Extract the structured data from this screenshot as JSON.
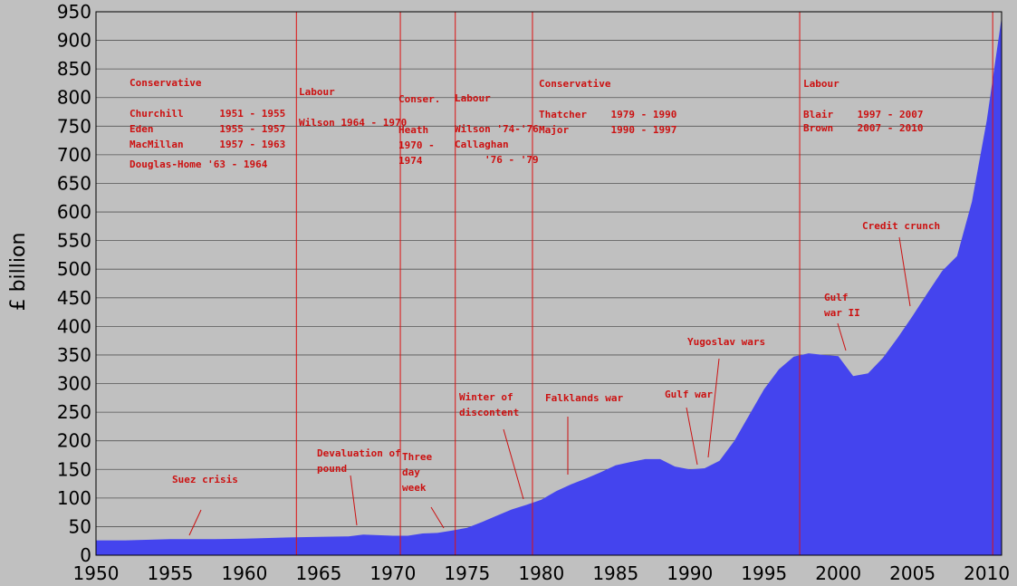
{
  "chart_data": {
    "type": "area",
    "ylabel": "£ billion",
    "xlim": [
      1950,
      2011
    ],
    "ylim": [
      0,
      950
    ],
    "grid": true,
    "area_color": "#4444ee",
    "annotation_color": "#dd1111",
    "x_ticks": [
      1950,
      1955,
      1960,
      1965,
      1970,
      1975,
      1980,
      1985,
      1990,
      1995,
      2000,
      2005,
      2010
    ],
    "y_ticks": [
      0,
      50,
      100,
      150,
      200,
      250,
      300,
      350,
      400,
      450,
      500,
      550,
      600,
      650,
      700,
      750,
      800,
      850,
      900,
      950
    ],
    "series": [
      {
        "x": [
          1950,
          1952,
          1955,
          1958,
          1960,
          1963,
          1965,
          1967,
          1968,
          1969,
          1970,
          1971,
          1972,
          1973,
          1974,
          1975,
          1976,
          1977,
          1978,
          1979,
          1980,
          1981,
          1982,
          1983,
          1984,
          1985,
          1986,
          1987,
          1988,
          1989,
          1990,
          1991,
          1992,
          1993,
          1994,
          1995,
          1996,
          1997,
          1998,
          1999,
          2000,
          2001,
          2002,
          2003,
          2004,
          2005,
          2006,
          2007,
          2008,
          2009,
          2010,
          2011
        ],
        "values": [
          26,
          26,
          28,
          28,
          29,
          31,
          32,
          33,
          36,
          35,
          34,
          34,
          38,
          39,
          43,
          48,
          58,
          69,
          80,
          88,
          97,
          112,
          124,
          134,
          145,
          157,
          163,
          168,
          168,
          155,
          150,
          152,
          165,
          200,
          245,
          290,
          325,
          347,
          353,
          350,
          348,
          313,
          318,
          345,
          380,
          418,
          458,
          497,
          523,
          618,
          760,
          940
        ]
      }
    ],
    "government_changes": [
      1963.5,
      1970.5,
      1974.2,
      1979.4,
      1997.4,
      2010.4
    ],
    "annotations": {
      "govt1": {
        "party": "Conservative",
        "lines": [
          "Churchill      1951 - 1955",
          "Eden           1955 - 1957",
          "MacMillan      1957 - 1963",
          "Douglas-Home '63 - 1964"
        ]
      },
      "govt2": {
        "party": "Labour",
        "lines": [
          "Wilson 1964 - 1970"
        ]
      },
      "govt3": {
        "party": "Conser.",
        "lines": [
          "Heath",
          "1970 -",
          "1974"
        ]
      },
      "govt4": {
        "party": "Labour",
        "lines": [
          "Wilson '74-'76",
          "Callaghan",
          "'76 - '79"
        ]
      },
      "govt5": {
        "party": "Conservative",
        "lines": [
          "Thatcher    1979 - 1990",
          "Major       1990 - 1997"
        ]
      },
      "govt6": {
        "party": "Labour",
        "lines": [
          "Blair    1997 - 2007",
          "Brown    2007 - 2010"
        ]
      },
      "events": [
        "Suez crisis",
        "Devaluation of",
        "pound",
        "Three",
        "day",
        "week",
        "Winter of",
        "discontent",
        "Falklands war",
        "Gulf war",
        "Yugoslav wars",
        "Gulf",
        "war II",
        "Credit crunch"
      ]
    }
  }
}
